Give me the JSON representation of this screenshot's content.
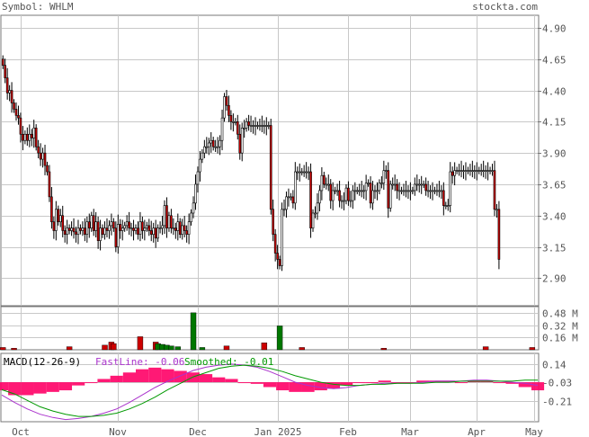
{
  "header": {
    "symbol_label": "Symbol: WHLM",
    "brand": "stockta.com"
  },
  "colors": {
    "up_candle": "#ffffff",
    "down_candle": "#cc0000",
    "volume_down": "#cc0000",
    "volume_up": "#007700",
    "macd_hist": "#ff0066",
    "fast_line": "#aa33cc",
    "smoothed_line": "#009900",
    "grid": "#c8c8c8",
    "axis_text": "#555555"
  },
  "chart_data": [
    {
      "type": "candlestick",
      "title": "",
      "y_ticks": [
        "4.90",
        "4.65",
        "4.40",
        "4.15",
        "3.90",
        "3.65",
        "3.40",
        "3.15",
        "2.90"
      ],
      "ylim": [
        2.68,
        5.0
      ],
      "x_ticks": [
        "Oct",
        "Nov",
        "Dec",
        "Jan 2025",
        "Feb",
        "Mar",
        "Apr",
        "May"
      ],
      "x_tick_index": [
        8,
        52,
        88,
        124,
        156,
        184,
        214,
        240
      ],
      "n": 242,
      "closes": [
        4.6,
        4.5,
        4.38,
        4.4,
        4.3,
        4.25,
        4.2,
        4.18,
        4.05,
        4.0,
        4.05,
        4.0,
        4.05,
        4.02,
        4.1,
        3.95,
        3.9,
        3.85,
        3.9,
        3.8,
        3.75,
        3.55,
        3.35,
        3.28,
        3.45,
        3.35,
        3.4,
        3.28,
        3.25,
        3.3,
        3.28,
        3.3,
        3.27,
        3.25,
        3.3,
        3.28,
        3.3,
        3.25,
        3.35,
        3.3,
        3.4,
        3.28,
        3.35,
        3.2,
        3.3,
        3.25,
        3.3,
        3.28,
        3.32,
        3.35,
        3.3,
        3.15,
        3.33,
        3.28,
        3.3,
        3.32,
        3.35,
        3.3,
        3.3,
        3.28,
        3.3,
        3.25,
        3.35,
        3.28,
        3.3,
        3.32,
        3.28,
        3.25,
        3.3,
        3.22,
        3.3,
        3.3,
        3.32,
        3.48,
        3.3,
        3.4,
        3.3,
        3.3,
        3.28,
        3.35,
        3.25,
        3.32,
        3.28,
        3.25,
        3.35,
        3.42,
        3.5,
        3.65,
        3.75,
        3.85,
        3.9,
        3.95,
        3.95,
        3.98,
        4.0,
        3.95,
        3.95,
        3.95,
        4.0,
        4.18,
        4.35,
        4.28,
        4.2,
        4.15,
        4.15,
        4.15,
        4.05,
        3.9,
        4.1,
        4.1,
        4.15,
        4.12,
        4.12,
        4.12,
        4.12,
        4.12,
        4.12,
        4.12,
        4.12,
        4.12,
        4.12,
        3.45,
        3.25,
        3.1,
        3.05,
        3.0,
        3.45,
        3.45,
        3.55,
        3.55,
        3.55,
        3.5,
        3.75,
        3.75,
        3.75,
        3.75,
        3.75,
        3.75,
        3.75,
        3.3,
        3.42,
        3.42,
        3.5,
        3.6,
        3.72,
        3.65,
        3.65,
        3.65,
        3.52,
        3.6,
        3.6,
        3.6,
        3.52,
        3.52,
        3.52,
        3.62,
        3.52,
        3.52,
        3.6,
        3.6,
        3.6,
        3.6,
        3.6,
        3.6,
        3.66,
        3.66,
        3.5,
        3.6,
        3.6,
        3.6,
        3.66,
        3.66,
        3.76,
        3.76,
        3.46,
        3.65,
        3.65,
        3.65,
        3.6,
        3.6,
        3.6,
        3.6,
        3.6,
        3.6,
        3.6,
        3.6,
        3.65,
        3.65,
        3.65,
        3.65,
        3.65,
        3.6,
        3.6,
        3.6,
        3.6,
        3.6,
        3.6,
        3.6,
        3.6,
        3.48,
        3.48,
        3.48,
        3.75,
        3.72,
        3.76,
        3.76,
        3.76,
        3.76,
        3.76,
        3.76,
        3.76,
        3.76,
        3.76,
        3.76,
        3.76,
        3.76,
        3.76,
        3.76,
        3.76,
        3.76,
        3.76,
        3.76,
        3.45,
        3.45,
        3.05
      ]
    },
    {
      "type": "bar",
      "title": "",
      "series_name": "Volume",
      "y_ticks": [
        "0.48 M",
        "0.32 M",
        "0.16 M"
      ],
      "ylim": [
        0,
        0.56
      ],
      "spikes": [
        {
          "i": 0,
          "v": 0.03,
          "up": false
        },
        {
          "i": 5,
          "v": 0.02,
          "up": false
        },
        {
          "i": 30,
          "v": 0.04,
          "up": false
        },
        {
          "i": 46,
          "v": 0.06,
          "up": false
        },
        {
          "i": 49,
          "v": 0.1,
          "up": false
        },
        {
          "i": 50,
          "v": 0.08,
          "up": false
        },
        {
          "i": 62,
          "v": 0.17,
          "up": false
        },
        {
          "i": 69,
          "v": 0.1,
          "up": false
        },
        {
          "i": 70,
          "v": 0.08,
          "up": true
        },
        {
          "i": 72,
          "v": 0.07,
          "up": true
        },
        {
          "i": 74,
          "v": 0.06,
          "up": true
        },
        {
          "i": 76,
          "v": 0.05,
          "up": true
        },
        {
          "i": 79,
          "v": 0.04,
          "up": true
        },
        {
          "i": 86,
          "v": 0.48,
          "up": true
        },
        {
          "i": 90,
          "v": 0.03,
          "up": true
        },
        {
          "i": 101,
          "v": 0.05,
          "up": false
        },
        {
          "i": 118,
          "v": 0.09,
          "up": false
        },
        {
          "i": 125,
          "v": 0.31,
          "up": true
        },
        {
          "i": 135,
          "v": 0.03,
          "up": false
        },
        {
          "i": 172,
          "v": 0.02,
          "up": false
        },
        {
          "i": 218,
          "v": 0.04,
          "up": false
        },
        {
          "i": 239,
          "v": 0.03,
          "up": false
        }
      ]
    },
    {
      "type": "line",
      "title": "MACD(12-26-9)",
      "legend": [
        {
          "label": "FastLine: -0.06",
          "color": "#aa33cc"
        },
        {
          "label": "Smoothed: -0.01",
          "color": "#009900"
        }
      ],
      "y_ticks": [
        "0.14",
        "-0.03",
        "-0.21"
      ],
      "ylim": [
        -0.4,
        0.24
      ],
      "series": [
        {
          "name": "FastLine",
          "values": [
            -0.15,
            -0.22,
            -0.28,
            -0.33,
            -0.36,
            -0.38,
            -0.37,
            -0.35,
            -0.32,
            -0.28,
            -0.22,
            -0.15,
            -0.08,
            -0.02,
            0.03,
            0.08,
            0.11,
            0.13,
            0.14,
            0.13,
            0.11,
            0.07,
            0.02,
            -0.03,
            -0.06,
            -0.08,
            -0.09,
            -0.08,
            -0.06,
            -0.05,
            -0.04,
            -0.04,
            -0.04,
            -0.03,
            -0.02,
            -0.02,
            -0.02,
            -0.01,
            -0.01,
            -0.02,
            -0.03,
            -0.04,
            -0.06
          ]
        },
        {
          "name": "Smoothed",
          "values": [
            -0.1,
            -0.14,
            -0.2,
            -0.26,
            -0.3,
            -0.33,
            -0.35,
            -0.35,
            -0.34,
            -0.32,
            -0.28,
            -0.23,
            -0.17,
            -0.1,
            -0.04,
            0.02,
            0.06,
            0.1,
            0.12,
            0.13,
            0.12,
            0.1,
            0.07,
            0.03,
            0.0,
            -0.03,
            -0.05,
            -0.06,
            -0.06,
            -0.05,
            -0.05,
            -0.04,
            -0.04,
            -0.04,
            -0.03,
            -0.03,
            -0.02,
            -0.02,
            -0.02,
            -0.02,
            -0.02,
            -0.01,
            -0.01
          ]
        }
      ]
    }
  ]
}
